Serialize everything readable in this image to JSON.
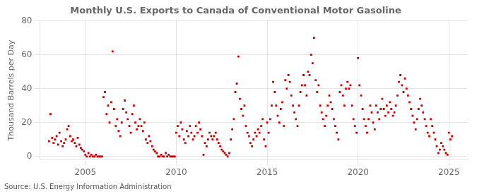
{
  "chart_data": {
    "type": "scatter",
    "title": "Monthly U.S. Exports to Canada of Conventional Motor Gasoline",
    "y_label": "Thousand Barrels per Day",
    "annotations": [
      "Source: U.S. Energy Information Administration"
    ],
    "color": "#cc0000",
    "marker": "square",
    "grid": true,
    "xlim": [
      2002.5,
      2026.0
    ],
    "ylim": [
      -2,
      80
    ],
    "xticks": [
      2005,
      2010,
      2015,
      2020,
      2025
    ],
    "yticks": [
      0,
      20,
      40,
      60,
      80
    ],
    "x": [
      2003.0,
      2003.08,
      2003.17,
      2003.25,
      2003.33,
      2003.42,
      2003.5,
      2003.58,
      2003.67,
      2003.75,
      2003.83,
      2003.92,
      2004.0,
      2004.08,
      2004.17,
      2004.25,
      2004.33,
      2004.42,
      2004.5,
      2004.58,
      2004.67,
      2004.75,
      2004.83,
      2004.92,
      2005.0,
      2005.08,
      2005.17,
      2005.25,
      2005.33,
      2005.42,
      2005.5,
      2005.58,
      2005.67,
      2005.75,
      2005.83,
      2005.92,
      2006.0,
      2006.08,
      2006.17,
      2006.25,
      2006.33,
      2006.42,
      2006.5,
      2006.58,
      2006.67,
      2006.75,
      2006.83,
      2006.92,
      2007.0,
      2007.08,
      2007.17,
      2007.25,
      2007.33,
      2007.42,
      2007.5,
      2007.58,
      2007.67,
      2007.75,
      2007.83,
      2007.92,
      2008.0,
      2008.08,
      2008.17,
      2008.25,
      2008.33,
      2008.42,
      2008.5,
      2008.58,
      2008.67,
      2008.75,
      2008.83,
      2008.92,
      2009.0,
      2009.08,
      2009.17,
      2009.25,
      2009.33,
      2009.42,
      2009.5,
      2009.58,
      2009.67,
      2009.75,
      2009.83,
      2009.92,
      2010.0,
      2010.08,
      2010.17,
      2010.25,
      2010.33,
      2010.42,
      2010.5,
      2010.58,
      2010.67,
      2010.75,
      2010.83,
      2010.92,
      2011.0,
      2011.08,
      2011.17,
      2011.25,
      2011.33,
      2011.42,
      2011.5,
      2011.58,
      2011.67,
      2011.75,
      2011.83,
      2011.92,
      2012.0,
      2012.08,
      2012.17,
      2012.25,
      2012.33,
      2012.42,
      2012.5,
      2012.58,
      2012.67,
      2012.75,
      2012.83,
      2012.92,
      2013.0,
      2013.08,
      2013.17,
      2013.25,
      2013.33,
      2013.42,
      2013.5,
      2013.58,
      2013.67,
      2013.75,
      2013.83,
      2013.92,
      2014.0,
      2014.08,
      2014.17,
      2014.25,
      2014.33,
      2014.42,
      2014.5,
      2014.58,
      2014.67,
      2014.75,
      2014.83,
      2014.92,
      2015.0,
      2015.08,
      2015.17,
      2015.25,
      2015.33,
      2015.42,
      2015.5,
      2015.58,
      2015.67,
      2015.75,
      2015.83,
      2015.92,
      2016.0,
      2016.08,
      2016.17,
      2016.25,
      2016.33,
      2016.42,
      2016.5,
      2016.58,
      2016.67,
      2016.75,
      2016.83,
      2016.92,
      2017.0,
      2017.08,
      2017.17,
      2017.25,
      2017.33,
      2017.42,
      2017.5,
      2017.58,
      2017.67,
      2017.75,
      2017.83,
      2017.92,
      2018.0,
      2018.08,
      2018.17,
      2018.25,
      2018.33,
      2018.42,
      2018.5,
      2018.58,
      2018.67,
      2018.75,
      2018.83,
      2018.92,
      2019.0,
      2019.08,
      2019.17,
      2019.25,
      2019.33,
      2019.42,
      2019.5,
      2019.58,
      2019.67,
      2019.75,
      2019.83,
      2019.92,
      2020.0,
      2020.08,
      2020.17,
      2020.25,
      2020.33,
      2020.42,
      2020.5,
      2020.58,
      2020.67,
      2020.75,
      2020.83,
      2020.92,
      2021.0,
      2021.08,
      2021.17,
      2021.25,
      2021.33,
      2021.42,
      2021.5,
      2021.58,
      2021.67,
      2021.75,
      2021.83,
      2021.92,
      2022.0,
      2022.08,
      2022.17,
      2022.25,
      2022.33,
      2022.42,
      2022.5,
      2022.58,
      2022.67,
      2022.75,
      2022.83,
      2022.92,
      2023.0,
      2023.08,
      2023.17,
      2023.25,
      2023.33,
      2023.42,
      2023.5,
      2023.58,
      2023.67,
      2023.75,
      2023.83,
      2023.92,
      2024.0,
      2024.08,
      2024.17,
      2024.25,
      2024.33,
      2024.42,
      2024.5,
      2024.58,
      2024.67,
      2024.75,
      2024.83,
      2024.92,
      2025.0,
      2025.08,
      2025.17
    ],
    "values": [
      9,
      25,
      11,
      8,
      10,
      12,
      7,
      14,
      9,
      6,
      8,
      10,
      16,
      18,
      12,
      9,
      10,
      8,
      6,
      11,
      7,
      5,
      4,
      3,
      1,
      0,
      2,
      0,
      1,
      0,
      0,
      1,
      0,
      0,
      0,
      0,
      35,
      38,
      25,
      30,
      20,
      32,
      62,
      28,
      18,
      22,
      15,
      12,
      20,
      28,
      33,
      26,
      22,
      18,
      14,
      25,
      30,
      20,
      16,
      18,
      22,
      18,
      15,
      20,
      10,
      8,
      12,
      9,
      6,
      4,
      3,
      2,
      0,
      0,
      1,
      0,
      0,
      2,
      0,
      1,
      0,
      0,
      0,
      0,
      14,
      18,
      12,
      20,
      16,
      10,
      8,
      15,
      12,
      18,
      14,
      10,
      12,
      18,
      14,
      20,
      16,
      12,
      1,
      8,
      6,
      10,
      14,
      12,
      10,
      12,
      14,
      10,
      8,
      6,
      4,
      3,
      2,
      1,
      0,
      2,
      10,
      16,
      22,
      38,
      43,
      59,
      34,
      28,
      24,
      30,
      18,
      14,
      12,
      8,
      6,
      10,
      14,
      12,
      16,
      14,
      18,
      22,
      10,
      6,
      20,
      14,
      22,
      30,
      44,
      38,
      30,
      24,
      20,
      28,
      32,
      18,
      45,
      40,
      48,
      44,
      36,
      30,
      26,
      22,
      18,
      30,
      38,
      42,
      48,
      42,
      36,
      50,
      48,
      60,
      55,
      70,
      45,
      38,
      42,
      30,
      26,
      22,
      18,
      24,
      30,
      36,
      32,
      28,
      22,
      18,
      14,
      10,
      38,
      42,
      36,
      30,
      40,
      44,
      40,
      42,
      30,
      22,
      18,
      14,
      58,
      42,
      36,
      28,
      22,
      18,
      14,
      22,
      30,
      26,
      20,
      16,
      30,
      26,
      22,
      28,
      34,
      28,
      24,
      30,
      26,
      32,
      28,
      24,
      26,
      30,
      36,
      44,
      48,
      42,
      38,
      46,
      40,
      36,
      32,
      28,
      24,
      20,
      16,
      22,
      28,
      34,
      30,
      26,
      22,
      18,
      14,
      12,
      22,
      18,
      14,
      10,
      6,
      2,
      4,
      8,
      6,
      4,
      2,
      1,
      14,
      10,
      12
    ]
  }
}
